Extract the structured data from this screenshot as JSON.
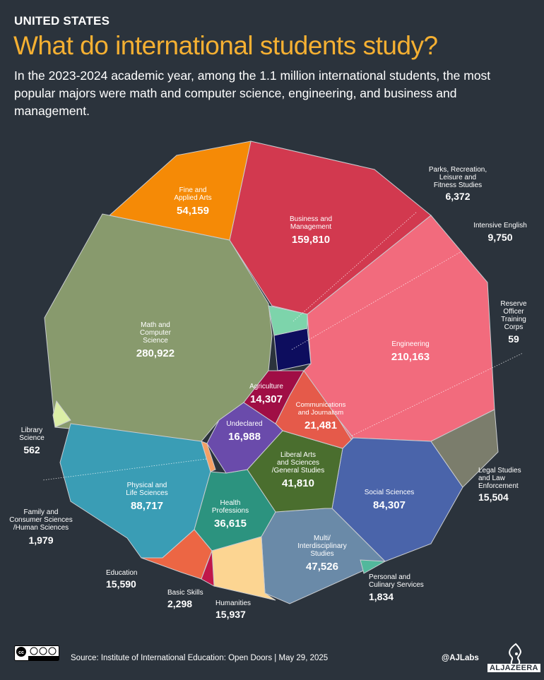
{
  "header": {
    "kicker": "UNITED STATES",
    "title": "What do international students study?",
    "subtitle": "In the 2023-2024 academic year, among the 1.1 million international students, the most popular majors were math and computer science, engineering, and business and management."
  },
  "chart_data": {
    "type": "voronoi-treemap",
    "title": "What do international students study?",
    "unit": "students",
    "categories": [
      {
        "name": "Math and Computer Science",
        "value": 280922,
        "display_value": "280,922",
        "color": "#889a6d"
      },
      {
        "name": "Engineering",
        "value": 210163,
        "display_value": "210,163",
        "color": "#f26b7d"
      },
      {
        "name": "Business and Management",
        "value": 159810,
        "display_value": "159,810",
        "color": "#d2394f"
      },
      {
        "name": "Physical and Life Sciences",
        "value": 88717,
        "display_value": "88,717",
        "color": "#3a9db5"
      },
      {
        "name": "Social Sciences",
        "value": 84307,
        "display_value": "84,307",
        "color": "#4a64aa"
      },
      {
        "name": "Fine and Applied Arts",
        "value": 54159,
        "display_value": "54,159",
        "color": "#f58a06"
      },
      {
        "name": "Multi/ Interdisciplinary Studies",
        "value": 47526,
        "display_value": "47,526",
        "color": "#6a8aa8"
      },
      {
        "name": "Liberal Arts and Sciences /General Studies",
        "value": 41810,
        "display_value": "41,810",
        "color": "#4a6e2e"
      },
      {
        "name": "Health Professions",
        "value": 36615,
        "display_value": "36,615",
        "color": "#2c937f"
      },
      {
        "name": "Communications and Journalism",
        "value": 21481,
        "display_value": "21,481",
        "color": "#e55a4a"
      },
      {
        "name": "Undeclared",
        "value": 16988,
        "display_value": "16,988",
        "color": "#6a4bab"
      },
      {
        "name": "Humanities",
        "value": 15937,
        "display_value": "15,937",
        "color": "#fcd592"
      },
      {
        "name": "Education",
        "value": 15590,
        "display_value": "15,590",
        "color": "#ec6644"
      },
      {
        "name": "Legal Studies and Law Enforcement",
        "value": 15504,
        "display_value": "15,504",
        "color": "#7b7d6c"
      },
      {
        "name": "Agriculture",
        "value": 14307,
        "display_value": "14,307",
        "color": "#a00e45"
      },
      {
        "name": "Intensive English",
        "value": 9750,
        "display_value": "9,750",
        "color": "#0d0d5e"
      },
      {
        "name": "Parks, Recreation, Leisure and Fitness Studies",
        "value": 6372,
        "display_value": "6,372",
        "color": "#7dd4ab"
      },
      {
        "name": "Basic Skills",
        "value": 2298,
        "display_value": "2,298",
        "color": "#c0174a"
      },
      {
        "name": "Family and Consumer Sciences /Human Sciences",
        "value": 1979,
        "display_value": "1,979",
        "color": "#f5a064"
      },
      {
        "name": "Personal and Culinary Services",
        "value": 1834,
        "display_value": "1,834",
        "color": "#52b89c"
      },
      {
        "name": "Library Science",
        "value": 562,
        "display_value": "562",
        "color": "#dbeea6"
      },
      {
        "name": "Reserve Officer Training Corps",
        "value": 59,
        "display_value": "59",
        "color": "#f26b7d"
      }
    ]
  },
  "footer": {
    "license": "CC BY NC SA",
    "source": "Source:  Institute of International Education: Open Doors    |    May 29, 2025",
    "handle": "@AJLabs",
    "brand": "ALJAZEERA"
  }
}
